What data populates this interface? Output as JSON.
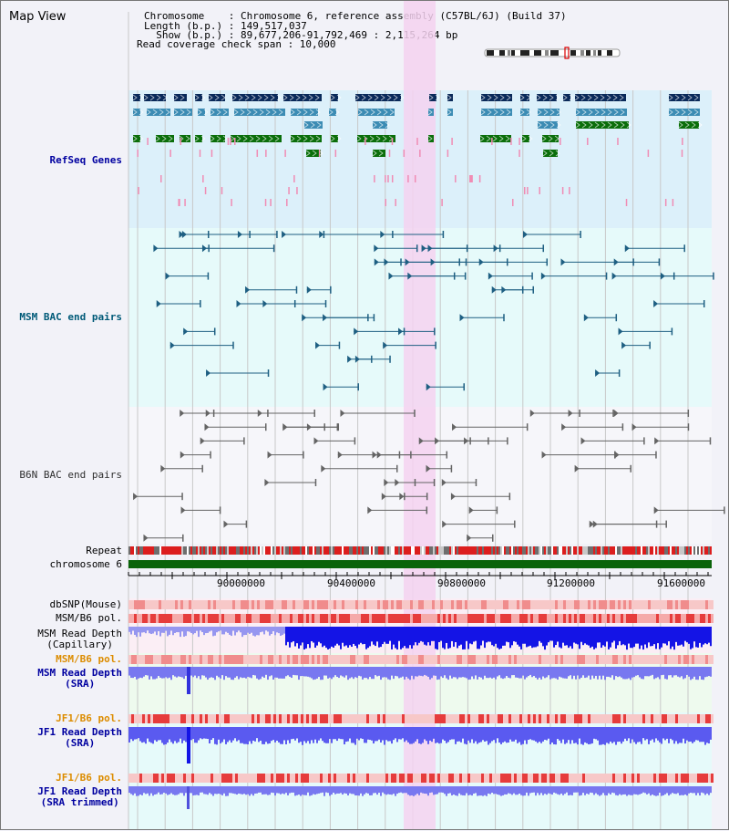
{
  "header": {
    "view_title": "Map View",
    "lines": [
      "Chromosome    : Chromosome 6, reference assembly (C57BL/6J) (Build 37)",
      "Length (b.p.) : 149,517,037",
      "  Show (b.p.) : 89,677,206-91,792,469 : 2,115,264 bp",
      "Read coverage check span : 10,000"
    ]
  },
  "colors": {
    "refseq_bg": "#dcf0fa",
    "msm_bac_bg": "#e6fafa",
    "b6n_bac_bg": "#f6f6fa",
    "highlight": "#f5d2f0",
    "gene_dark": "#0a2a5a",
    "gene_mid": "#3c8cb4",
    "gene_green": "#0a6e0a",
    "gene_pink": "#f08cb4",
    "bac_msm": "#1e5f82",
    "bac_b6n": "#646464",
    "repeat_red": "#dc1e1e",
    "chromosome_green": "#0a640a",
    "depth_blue": "#1414e6",
    "depth_light": "#7878f0",
    "snp_pink": "#f5aaaa",
    "pol_red": "#e63c3c",
    "label_blue": "#0000a0",
    "label_teal": "#005a78",
    "label_orange": "#dc8c00"
  },
  "tracks": {
    "refseq": "RefSeq Genes",
    "msm_bac": "MSM BAC end pairs",
    "b6n_bac": "B6N BAC end pairs",
    "repeat": "Repeat",
    "chromosome": "chromosome 6",
    "dbsnp": "dbSNP(Mouse)",
    "msm_b6_pol_1": "MSM/B6 pol.",
    "msm_depth_cap": "MSM Read Depth\n(Capillary)",
    "msm_b6_pol_2": "MSM/B6 pol.",
    "msm_depth_sra": "MSM Read Depth\n(SRA)",
    "jf1_b6_pol_1": "JF1/B6 pol.",
    "jf1_depth_sra": "JF1 Read Depth\n(SRA)",
    "jf1_b6_pol_2": "JF1/B6 pol.",
    "jf1_depth_trim": "JF1 Read Depth\n(SRA trimmed)"
  },
  "axis": {
    "ticks": [
      "90000000",
      "90400000",
      "90800000",
      "91200000",
      "91600000"
    ]
  }
}
